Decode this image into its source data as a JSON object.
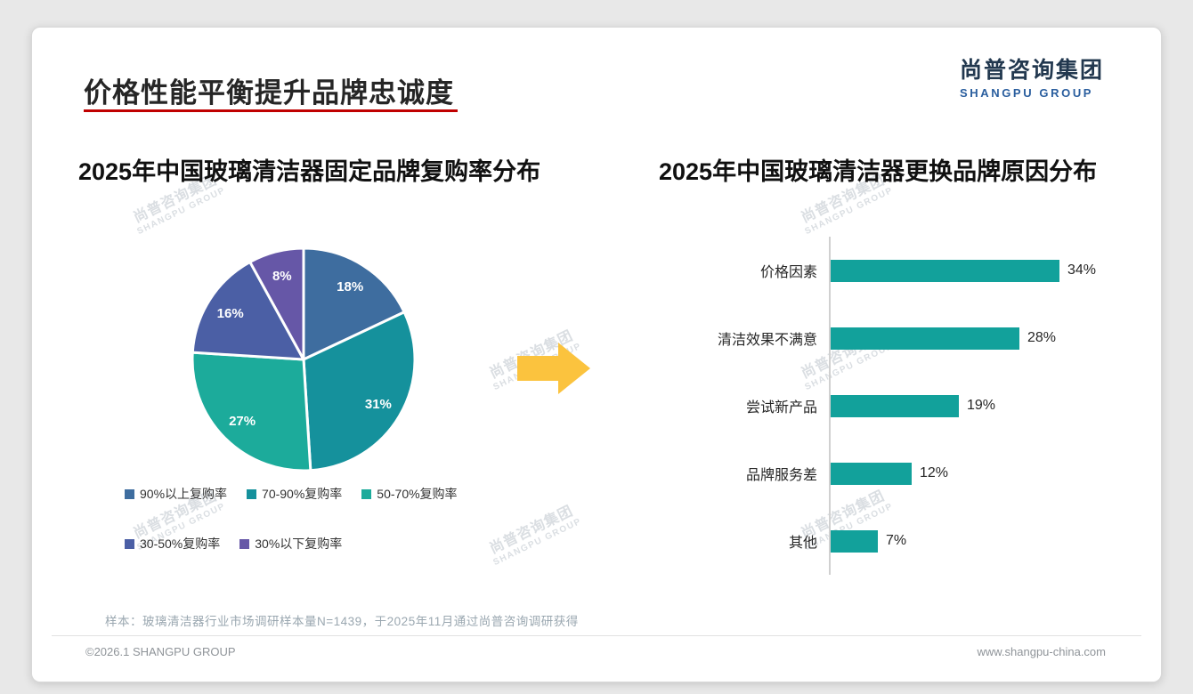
{
  "page": {
    "title": "价格性能平衡提升品牌忠诚度",
    "sample_note": "样本：玻璃清洁器行业市场调研样本量N=1439，于2025年11月通过尚普咨询调研获得",
    "footer_left": "©2026.1 SHANGPU GROUP",
    "footer_right": "www.shangpu-china.com"
  },
  "logo": {
    "cn": "尚普咨询集团",
    "en": "SHANGPU GROUP"
  },
  "watermark": {
    "cn": "尚普咨询集团",
    "en": "SHANGPU GROUP"
  },
  "colors": {
    "accent_red": "#c00000",
    "arrow_yellow": "#fbc33e",
    "bar_teal": "#12a19b",
    "logo_navy": "#22384f",
    "logo_blue": "#2a5e9e"
  },
  "chart_data": [
    {
      "type": "pie",
      "title": "2025年中国玻璃清洁器固定品牌复购率分布",
      "labels": [
        "90%以上复购率",
        "70-90%复购率",
        "50-70%复购率",
        "30-50%复购率",
        "30%以下复购率"
      ],
      "values": [
        18,
        31,
        27,
        16,
        8
      ],
      "data_labels": [
        "18%",
        "31%",
        "27%",
        "16%",
        "8%"
      ],
      "colors": [
        "#3e6d9f",
        "#15919c",
        "#1cab9b",
        "#4b5fa5",
        "#6657a7"
      ],
      "start_angle_deg": 0,
      "direction": "clockwise",
      "legend_position": "bottom"
    },
    {
      "type": "bar",
      "title": "2025年中国玻璃清洁器更换品牌原因分布",
      "orientation": "horizontal",
      "categories": [
        "价格因素",
        "清洁效果不满意",
        "尝试新产品",
        "品牌服务差",
        "其他"
      ],
      "values": [
        34,
        28,
        19,
        12,
        7
      ],
      "data_labels": [
        "34%",
        "28%",
        "19%",
        "12%",
        "7%"
      ],
      "bar_color": "#12a19b",
      "xlim": [
        0,
        40
      ],
      "grid": false,
      "legend_position": "none"
    }
  ]
}
